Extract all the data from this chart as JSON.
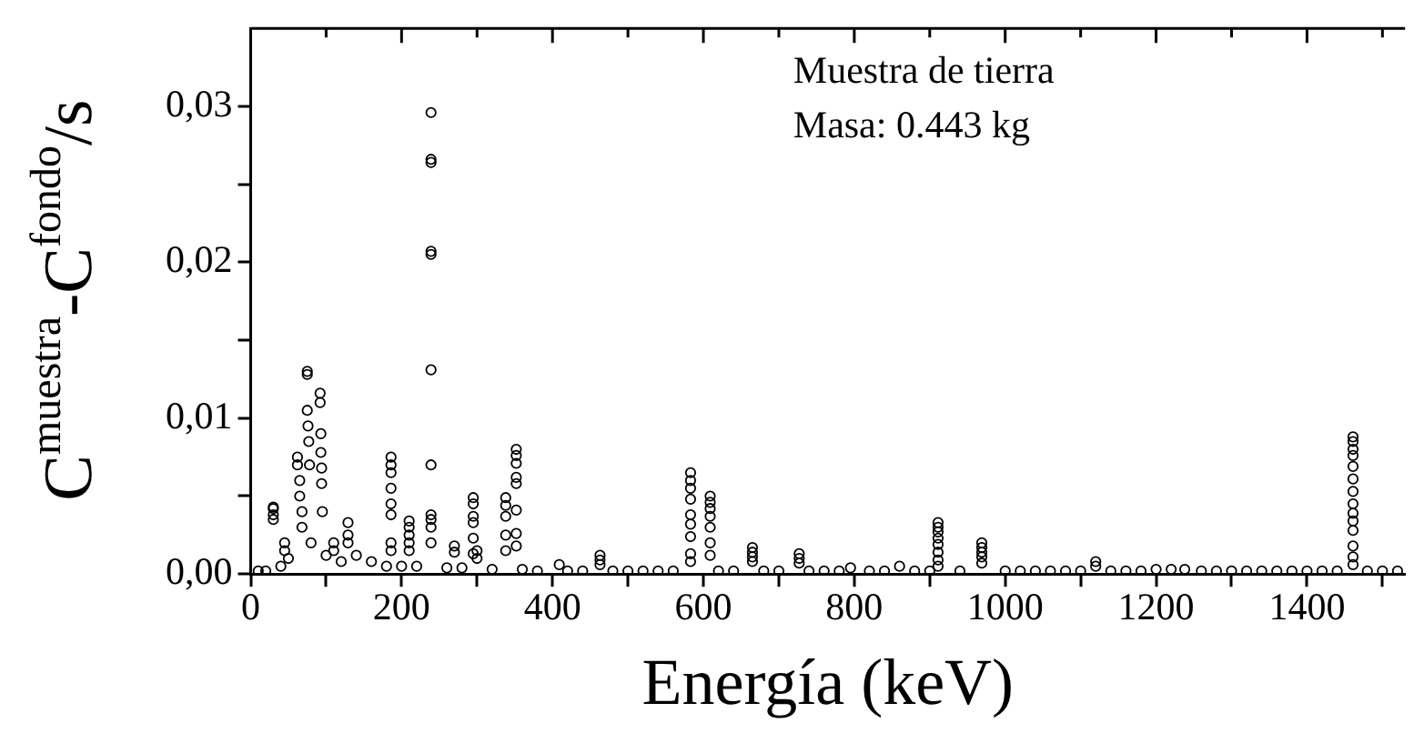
{
  "chart_data": {
    "type": "scatter",
    "xlabel": "Energía (keV)",
    "ylabel": "C$^{muestra}$-C$^{fondo}$/s",
    "annotations": [
      "Muestra de tierra",
      "Masa: 0.443 kg"
    ],
    "marker": "circle",
    "grid": false,
    "legend": false,
    "xlim": [
      0,
      1530
    ],
    "ylim": [
      0,
      0.035
    ],
    "xticks": [
      0,
      {
        "value": 100,
        "label": null
      },
      200,
      {
        "value": 300,
        "label": null
      },
      400,
      {
        "value": 500,
        "label": null
      },
      600,
      {
        "value": 700,
        "label": null
      },
      800,
      {
        "value": 900,
        "label": null
      },
      1000,
      {
        "value": 1100,
        "label": null
      },
      1200,
      {
        "value": 1300,
        "label": null
      },
      1400,
      {
        "value": 1500,
        "label": null
      }
    ],
    "yticks": [
      {
        "value": 0,
        "label": "0,00"
      },
      {
        "value": 0.005,
        "label": null
      },
      {
        "value": 0.01,
        "label": "0,01"
      },
      {
        "value": 0.015,
        "label": null
      },
      {
        "value": 0.02,
        "label": "0,02"
      },
      {
        "value": 0.025,
        "label": null
      },
      {
        "value": 0.03,
        "label": "0,03"
      }
    ],
    "series": [
      {
        "color": "#000000",
        "x": [
          10,
          20,
          40,
          50,
          80,
          100,
          120,
          140,
          160,
          180,
          200,
          220,
          260,
          280,
          320,
          360,
          380,
          420,
          440,
          480,
          500,
          520,
          540,
          560,
          620,
          640,
          680,
          700,
          740,
          760,
          780,
          820,
          840,
          880,
          900,
          940,
          1000,
          1020,
          1040,
          1060,
          1080,
          1100,
          1140,
          1160,
          1180,
          1200,
          1220,
          1260,
          1280,
          1300,
          1320,
          1340,
          1360,
          1380,
          1400,
          1420,
          1440,
          1480,
          1500,
          1520,
          30,
          30,
          30,
          30,
          45,
          45,
          62,
          62,
          65,
          65,
          68,
          68,
          75,
          75,
          75,
          76,
          77,
          78,
          92,
          92,
          93,
          93,
          94,
          94,
          95,
          110,
          110,
          129,
          129,
          129,
          186,
          186,
          186,
          186,
          186,
          186,
          186,
          186,
          210,
          210,
          210,
          210,
          210,
          239,
          239,
          239,
          239,
          239,
          239,
          239,
          239,
          239,
          239,
          239,
          270,
          270,
          295,
          295,
          295,
          295,
          295,
          295,
          300,
          300,
          338,
          338,
          338,
          338,
          338,
          352,
          352,
          352,
          352,
          352,
          352,
          352,
          352,
          409,
          463,
          463,
          463,
          583,
          583,
          583,
          583,
          583,
          583,
          583,
          583,
          583,
          609,
          609,
          609,
          609,
          609,
          609,
          609,
          665,
          665,
          665,
          665,
          727,
          727,
          727,
          795,
          860,
          911,
          911,
          911,
          911,
          911,
          911,
          911,
          911,
          969,
          969,
          969,
          969,
          969,
          1120,
          1120,
          1238,
          1461,
          1461,
          1461,
          1461,
          1461,
          1461,
          1461,
          1461,
          1461,
          1461,
          1461,
          1461,
          1461,
          1461
        ],
        "values": [
          0.0002,
          0.0002,
          0.0005,
          0.001,
          0.002,
          0.0012,
          0.0008,
          0.0012,
          0.0008,
          0.0005,
          0.0005,
          0.0005,
          0.0004,
          0.0004,
          0.0003,
          0.0003,
          0.0002,
          0.0002,
          0.0002,
          0.0002,
          0.0002,
          0.0002,
          0.0002,
          0.0002,
          0.0002,
          0.0002,
          0.0002,
          0.0002,
          0.0002,
          0.0002,
          0.0002,
          0.0002,
          0.0002,
          0.0002,
          0.0002,
          0.0002,
          0.0002,
          0.0002,
          0.0002,
          0.0002,
          0.0002,
          0.0002,
          0.0002,
          0.0002,
          0.0002,
          0.0003,
          0.0003,
          0.0002,
          0.0002,
          0.0002,
          0.0002,
          0.0002,
          0.0002,
          0.0002,
          0.0002,
          0.0002,
          0.0002,
          0.0002,
          0.0002,
          0.0002,
          0.0043,
          0.0042,
          0.0038,
          0.0035,
          0.0015,
          0.002,
          0.0075,
          0.007,
          0.006,
          0.005,
          0.004,
          0.003,
          0.013,
          0.0128,
          0.0105,
          0.0095,
          0.0085,
          0.007,
          0.0116,
          0.011,
          0.009,
          0.0078,
          0.0068,
          0.0058,
          0.004,
          0.002,
          0.0015,
          0.0033,
          0.0025,
          0.002,
          0.0075,
          0.007,
          0.0065,
          0.0055,
          0.0045,
          0.0038,
          0.002,
          0.0015,
          0.0034,
          0.003,
          0.0025,
          0.002,
          0.0015,
          0.0296,
          0.0266,
          0.0264,
          0.0207,
          0.0205,
          0.0131,
          0.007,
          0.0038,
          0.0035,
          0.003,
          0.002,
          0.0018,
          0.0014,
          0.0049,
          0.0045,
          0.0037,
          0.0033,
          0.0023,
          0.0013,
          0.0015,
          0.001,
          0.0049,
          0.0044,
          0.0037,
          0.0025,
          0.0015,
          0.008,
          0.0076,
          0.0071,
          0.0062,
          0.0058,
          0.0041,
          0.0026,
          0.0018,
          0.0006,
          0.0012,
          0.0009,
          0.0006,
          0.0065,
          0.006,
          0.0055,
          0.0048,
          0.0038,
          0.0032,
          0.0024,
          0.0013,
          0.0008,
          0.005,
          0.0046,
          0.0042,
          0.0037,
          0.003,
          0.002,
          0.0012,
          0.0017,
          0.0014,
          0.0011,
          0.0008,
          0.0013,
          0.001,
          0.0007,
          0.0004,
          0.0005,
          0.0033,
          0.003,
          0.0027,
          0.0023,
          0.0019,
          0.0014,
          0.0009,
          0.0005,
          0.002,
          0.0017,
          0.0014,
          0.0011,
          0.0007,
          0.0008,
          0.0005,
          0.0003,
          0.0088,
          0.0085,
          0.008,
          0.0076,
          0.0069,
          0.0061,
          0.0053,
          0.0045,
          0.0039,
          0.0034,
          0.0028,
          0.0018,
          0.0011,
          0.0006
        ]
      }
    ]
  }
}
